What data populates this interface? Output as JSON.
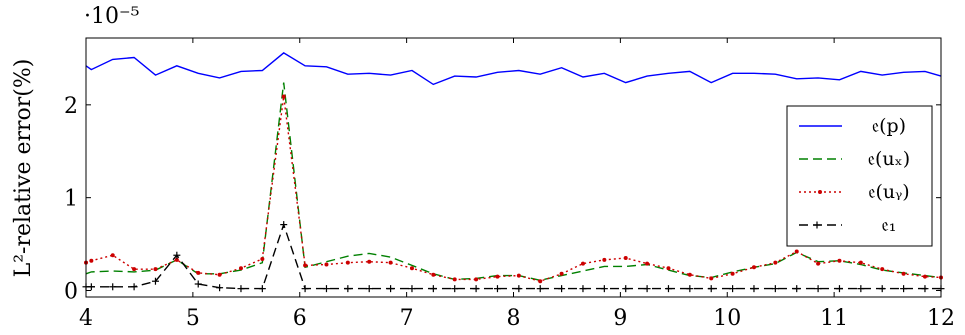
{
  "chart_data": {
    "type": "line",
    "title": "",
    "xlabel": "",
    "ylabel": "L²-relative error(%)",
    "y_multiplier": "·10⁻⁵",
    "xlim": [
      4,
      12
    ],
    "ylim": [
      -0.07,
      2.72
    ],
    "x_ticks": [
      4,
      5,
      6,
      7,
      8,
      9,
      10,
      11,
      12
    ],
    "y_ticks": [
      0,
      1,
      2
    ],
    "grid": false,
    "legend_position": "right",
    "series": [
      {
        "name": "𝔢(p)",
        "color": "#0000ff",
        "style": "solid",
        "marker": "none",
        "x": [
          4.0,
          4.05,
          4.25,
          4.45,
          4.65,
          4.85,
          5.05,
          5.25,
          5.45,
          5.65,
          5.85,
          6.05,
          6.25,
          6.45,
          6.65,
          6.85,
          7.05,
          7.25,
          7.45,
          7.65,
          7.85,
          8.05,
          8.25,
          8.45,
          8.65,
          8.85,
          9.05,
          9.25,
          9.45,
          9.65,
          9.85,
          10.05,
          10.25,
          10.45,
          10.65,
          10.85,
          11.05,
          11.25,
          11.45,
          11.65,
          11.85,
          12.0
        ],
        "y": [
          2.42,
          2.38,
          2.49,
          2.51,
          2.32,
          2.42,
          2.34,
          2.29,
          2.36,
          2.37,
          2.56,
          2.42,
          2.41,
          2.33,
          2.34,
          2.32,
          2.37,
          2.22,
          2.31,
          2.3,
          2.35,
          2.37,
          2.33,
          2.4,
          2.3,
          2.34,
          2.24,
          2.31,
          2.34,
          2.36,
          2.24,
          2.34,
          2.34,
          2.33,
          2.28,
          2.29,
          2.27,
          2.36,
          2.32,
          2.35,
          2.36,
          2.31
        ]
      },
      {
        "name": "𝔢(uₓ)",
        "color": "#008000",
        "style": "dashed",
        "marker": "none",
        "x": [
          4.0,
          4.05,
          4.25,
          4.45,
          4.65,
          4.85,
          5.05,
          5.25,
          5.45,
          5.65,
          5.85,
          6.05,
          6.25,
          6.45,
          6.65,
          6.85,
          7.05,
          7.25,
          7.45,
          7.65,
          7.85,
          8.05,
          8.25,
          8.45,
          8.65,
          8.85,
          9.05,
          9.25,
          9.45,
          9.65,
          9.85,
          10.05,
          10.25,
          10.45,
          10.65,
          10.85,
          11.05,
          11.25,
          11.45,
          11.65,
          11.85,
          12.0
        ],
        "y": [
          0.18,
          0.2,
          0.21,
          0.2,
          0.22,
          0.33,
          0.18,
          0.18,
          0.22,
          0.3,
          2.24,
          0.25,
          0.31,
          0.37,
          0.4,
          0.36,
          0.27,
          0.18,
          0.12,
          0.13,
          0.16,
          0.16,
          0.11,
          0.16,
          0.21,
          0.26,
          0.26,
          0.28,
          0.22,
          0.16,
          0.14,
          0.2,
          0.25,
          0.29,
          0.41,
          0.31,
          0.32,
          0.28,
          0.22,
          0.19,
          0.16,
          0.14
        ]
      },
      {
        "name": "𝔢(uᵧ)",
        "color": "#cc0000",
        "style": "dotted",
        "marker": "star",
        "x": [
          4.0,
          4.05,
          4.25,
          4.45,
          4.65,
          4.85,
          5.05,
          5.25,
          5.45,
          5.65,
          5.85,
          6.05,
          6.25,
          6.45,
          6.65,
          6.85,
          7.05,
          7.25,
          7.45,
          7.65,
          7.85,
          8.05,
          8.25,
          8.45,
          8.65,
          8.85,
          9.05,
          9.25,
          9.45,
          9.65,
          9.85,
          10.05,
          10.25,
          10.45,
          10.65,
          10.85,
          11.05,
          11.25,
          11.45,
          11.65,
          11.85,
          12.0
        ],
        "y": [
          0.3,
          0.32,
          0.38,
          0.23,
          0.23,
          0.33,
          0.19,
          0.17,
          0.24,
          0.34,
          2.09,
          0.27,
          0.28,
          0.3,
          0.31,
          0.3,
          0.24,
          0.17,
          0.12,
          0.12,
          0.15,
          0.16,
          0.1,
          0.18,
          0.29,
          0.33,
          0.35,
          0.29,
          0.24,
          0.17,
          0.13,
          0.18,
          0.25,
          0.3,
          0.42,
          0.29,
          0.32,
          0.3,
          0.23,
          0.18,
          0.15,
          0.14
        ]
      },
      {
        "name": "𝔢₁",
        "color": "#000000",
        "style": "dashed",
        "marker": "plus",
        "x": [
          4.0,
          4.05,
          4.25,
          4.45,
          4.65,
          4.85,
          5.05,
          5.25,
          5.45,
          5.65,
          5.85,
          6.05,
          6.25,
          6.45,
          6.65,
          6.85,
          7.05,
          7.25,
          7.45,
          7.65,
          7.85,
          8.05,
          8.25,
          8.45,
          8.65,
          8.85,
          9.05,
          9.25,
          9.45,
          9.65,
          9.85,
          10.05,
          10.25,
          10.45,
          10.65,
          10.85,
          11.05,
          11.25,
          11.45,
          11.65,
          11.85,
          12.0
        ],
        "y": [
          0.04,
          0.04,
          0.04,
          0.04,
          0.1,
          0.38,
          0.07,
          0.03,
          0.02,
          0.02,
          0.71,
          0.02,
          0.02,
          0.02,
          0.02,
          0.02,
          0.02,
          0.02,
          0.02,
          0.02,
          0.02,
          0.02,
          0.02,
          0.02,
          0.02,
          0.02,
          0.02,
          0.02,
          0.02,
          0.02,
          0.02,
          0.02,
          0.02,
          0.02,
          0.02,
          0.02,
          0.02,
          0.02,
          0.02,
          0.02,
          0.02,
          0.02
        ]
      }
    ]
  }
}
